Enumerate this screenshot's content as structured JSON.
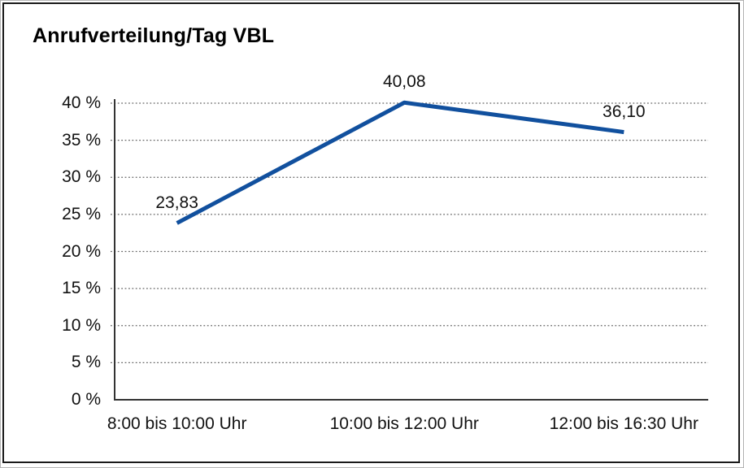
{
  "window": {
    "background": "#ffffff",
    "frame_color": "#1a1a1a"
  },
  "chart_data": {
    "type": "line",
    "title": "Anrufverteilung/Tag VBL",
    "categories": [
      "8:00 bis 10:00 Uhr",
      "10:00 bis 12:00 Uhr",
      "12:00 bis 16:30 Uhr"
    ],
    "values": [
      23.83,
      40.08,
      36.1
    ],
    "data_labels": [
      "23,83",
      "40,08",
      "36,10"
    ],
    "xlabel": "",
    "ylabel": "",
    "ylim": [
      0,
      40
    ],
    "ytick_step": 5,
    "ytick_labels": [
      "0 %",
      "5 %",
      "10 %",
      "15 %",
      "20 %",
      "25 %",
      "30 %",
      "35 %",
      "40 %"
    ],
    "grid": "horizontal dotted",
    "legend": "none",
    "line_color": "#11509e",
    "axis_color": "#333333",
    "gridline_color": "#666666",
    "text_color": "#111111"
  }
}
